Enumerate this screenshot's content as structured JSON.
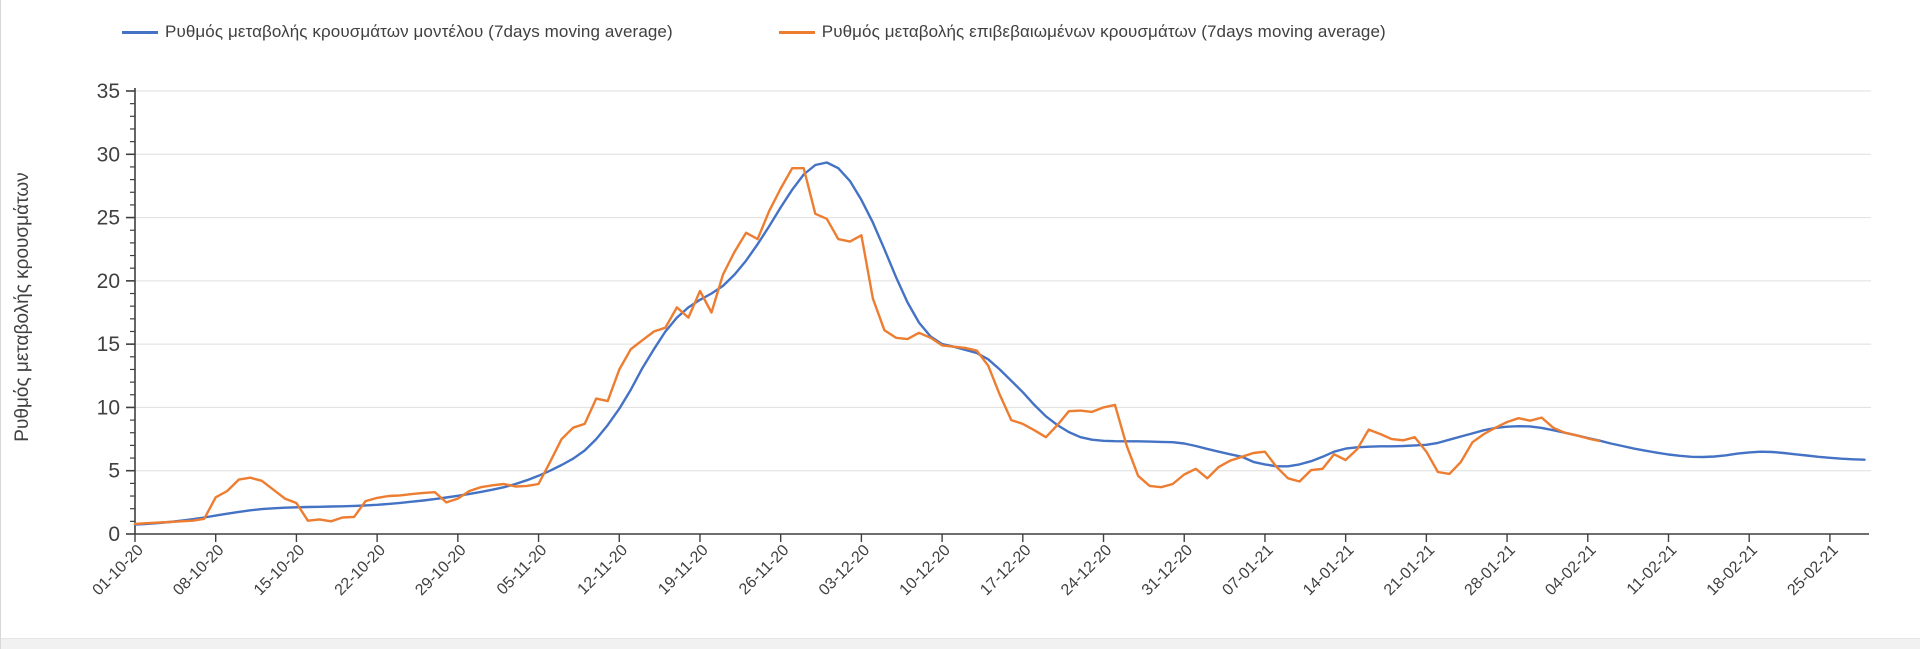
{
  "colors": {
    "blue": "#4472c4",
    "orange": "#ed7d31",
    "text": "#404040",
    "grid": "#dfdfdf",
    "axis": "#3f3f3f"
  },
  "y_axis": {
    "title": "Ρυθμός μεταβολής κρουσμάτων",
    "ticks": [
      0,
      5,
      10,
      15,
      20,
      25,
      30,
      35
    ],
    "min": 0,
    "max": 35
  },
  "chart_data": {
    "type": "line",
    "title": "",
    "xlabel": "",
    "ylabel": "Ρυθμός μεταβολής κρουσμάτων",
    "ylim": [
      0,
      35
    ],
    "y_ticks": [
      0,
      5,
      10,
      15,
      20,
      25,
      30,
      35
    ],
    "grid": true,
    "legend_position": "top",
    "x_unit": "daily values, day 0 = 01-10-20, one point per day",
    "x_tick_labels": [
      "01-10-20",
      "08-10-20",
      "15-10-20",
      "22-10-20",
      "29-10-20",
      "05-11-20",
      "12-11-20",
      "19-11-20",
      "26-11-20",
      "03-12-20",
      "10-12-20",
      "17-12-20",
      "24-12-20",
      "31-12-20",
      "07-01-21",
      "14-01-21",
      "21-01-21",
      "28-01-21",
      "04-02-21",
      "11-02-21",
      "18-02-21",
      "25-02-21"
    ],
    "x_tick_interval_days": 7,
    "series": [
      {
        "name": "Ρυθμός μεταβολής κρουσμάτων μοντέλου (7days moving average)",
        "color": "#4472c4",
        "start_day": 0,
        "values": [
          0.75,
          0.8,
          0.87,
          0.95,
          1.05,
          1.17,
          1.3,
          1.45,
          1.6,
          1.75,
          1.87,
          1.97,
          2.03,
          2.08,
          2.11,
          2.13,
          2.15,
          2.17,
          2.19,
          2.22,
          2.26,
          2.31,
          2.38,
          2.46,
          2.55,
          2.65,
          2.76,
          2.88,
          3.02,
          3.17,
          3.33,
          3.5,
          3.7,
          3.95,
          4.25,
          4.6,
          5.0,
          5.45,
          5.95,
          6.6,
          7.5,
          8.6,
          9.9,
          11.4,
          13.1,
          14.6,
          16.0,
          17.1,
          17.9,
          18.5,
          19.0,
          19.6,
          20.5,
          21.6,
          22.9,
          24.3,
          25.8,
          27.2,
          28.4,
          29.15,
          29.35,
          28.9,
          27.9,
          26.4,
          24.6,
          22.5,
          20.3,
          18.3,
          16.7,
          15.6,
          15.0,
          14.8,
          14.55,
          14.3,
          13.8,
          13.0,
          12.1,
          11.2,
          10.2,
          9.3,
          8.6,
          8.05,
          7.65,
          7.45,
          7.36,
          7.33,
          7.32,
          7.32,
          7.3,
          7.28,
          7.25,
          7.15,
          6.95,
          6.72,
          6.5,
          6.3,
          6.1,
          5.7,
          5.5,
          5.35,
          5.35,
          5.5,
          5.75,
          6.1,
          6.5,
          6.75,
          6.85,
          6.9,
          6.93,
          6.93,
          6.95,
          7.0,
          7.05,
          7.2,
          7.45,
          7.7,
          7.95,
          8.2,
          8.38,
          8.48,
          8.52,
          8.5,
          8.38,
          8.2,
          8.0,
          7.8,
          7.58,
          7.38,
          7.15,
          6.95,
          6.75,
          6.58,
          6.42,
          6.28,
          6.18,
          6.1,
          6.08,
          6.12,
          6.22,
          6.35,
          6.45,
          6.5,
          6.48,
          6.4,
          6.3,
          6.2,
          6.1,
          6.02,
          5.95,
          5.9,
          5.87
        ]
      },
      {
        "name": "Ρυθμός μεταβολής επιβεβαιωμένων κρουσμάτων (7days moving average)",
        "color": "#ed7d31",
        "start_day": 0,
        "values": [
          0.8,
          0.85,
          0.9,
          0.95,
          1.0,
          1.05,
          1.2,
          2.9,
          3.4,
          4.3,
          4.45,
          4.2,
          3.5,
          2.8,
          2.45,
          1.05,
          1.15,
          1.0,
          1.3,
          1.35,
          2.6,
          2.85,
          3.0,
          3.05,
          3.15,
          3.25,
          3.3,
          2.5,
          2.8,
          3.4,
          3.7,
          3.85,
          3.95,
          3.75,
          3.8,
          3.95,
          5.7,
          7.5,
          8.4,
          8.7,
          10.7,
          10.5,
          13.0,
          14.6,
          15.3,
          16.0,
          16.3,
          17.9,
          17.1,
          19.2,
          17.5,
          20.5,
          22.3,
          23.8,
          23.3,
          25.5,
          27.3,
          28.9,
          28.9,
          25.3,
          24.9,
          23.3,
          23.1,
          23.6,
          18.6,
          16.1,
          15.5,
          15.4,
          15.9,
          15.5,
          14.9,
          14.8,
          14.7,
          14.5,
          13.3,
          11.0,
          9.0,
          8.7,
          8.2,
          7.65,
          8.6,
          9.7,
          9.75,
          9.65,
          10.0,
          10.2,
          7.0,
          4.6,
          3.8,
          3.7,
          3.95,
          4.7,
          5.15,
          4.4,
          5.3,
          5.8,
          6.1,
          6.4,
          6.5,
          5.3,
          4.4,
          4.15,
          5.05,
          5.15,
          6.3,
          5.85,
          6.7,
          8.25,
          7.9,
          7.5,
          7.4,
          7.65,
          6.5,
          4.9,
          4.75,
          5.7,
          7.25,
          7.9,
          8.4,
          8.85,
          9.15,
          8.95,
          9.2,
          8.4,
          8.0,
          7.8,
          7.55,
          7.35
        ]
      }
    ]
  }
}
